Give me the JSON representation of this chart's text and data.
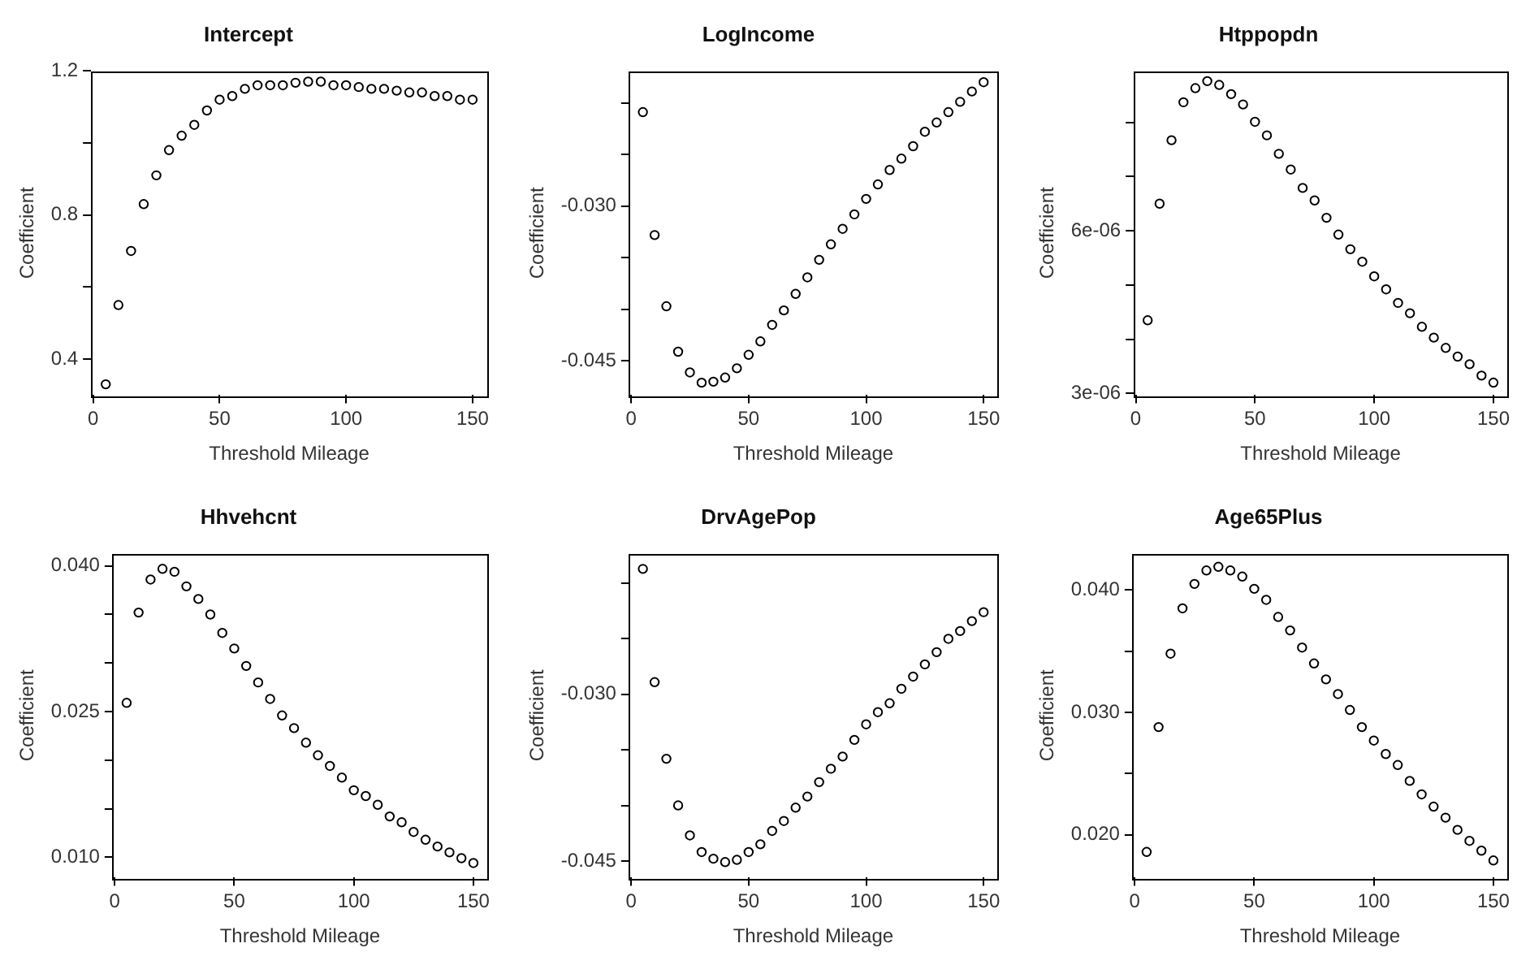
{
  "chart_data": [
    {
      "type": "scatter",
      "title": "Intercept",
      "xlabel": "Threshold Mileage",
      "ylabel": "Coefficient",
      "marker": "circle",
      "color": "#000000",
      "x": [
        5,
        10,
        15,
        20,
        25,
        30,
        35,
        40,
        45,
        50,
        55,
        60,
        65,
        70,
        75,
        80,
        85,
        90,
        95,
        100,
        105,
        110,
        115,
        120,
        125,
        130,
        135,
        140,
        145,
        150
      ],
      "values": [
        0.33,
        0.55,
        0.7,
        0.83,
        0.91,
        0.98,
        1.02,
        1.05,
        1.09,
        1.12,
        1.13,
        1.15,
        1.16,
        1.16,
        1.16,
        1.167,
        1.17,
        1.17,
        1.16,
        1.16,
        1.155,
        1.15,
        1.15,
        1.145,
        1.14,
        1.14,
        1.13,
        1.13,
        1.12,
        1.12
      ],
      "xlim": [
        -0.8,
        155.8
      ],
      "xticks": [
        0,
        50,
        100,
        150
      ],
      "ylim": [
        0.3,
        1.2
      ],
      "yticks": [
        0.4,
        {
          "value": 0.6,
          "label": null
        },
        0.8,
        {
          "value": 1.0,
          "label": null
        },
        1.2
      ]
    },
    {
      "type": "scatter",
      "title": "LogIncome",
      "xlabel": "Threshold Mileage",
      "ylabel": "Coefficient",
      "marker": "circle",
      "color": "#000000",
      "x": [
        5,
        10,
        15,
        20,
        25,
        30,
        35,
        40,
        45,
        50,
        55,
        60,
        65,
        70,
        75,
        80,
        85,
        90,
        95,
        100,
        105,
        110,
        115,
        120,
        125,
        130,
        135,
        140,
        145,
        150
      ],
      "values": [
        -0.0209,
        -0.0328,
        -0.0397,
        -0.0441,
        -0.0461,
        -0.0471,
        -0.047,
        -0.0466,
        -0.0457,
        -0.0444,
        -0.0431,
        -0.0415,
        -0.0401,
        -0.0385,
        -0.0369,
        -0.0352,
        -0.0337,
        -0.0322,
        -0.0308,
        -0.0293,
        -0.0279,
        -0.0265,
        -0.0254,
        -0.0242,
        -0.0228,
        -0.0219,
        -0.0209,
        -0.0199,
        -0.0189,
        -0.018
      ],
      "xlim": [
        -0.8,
        155.8
      ],
      "xticks": [
        0,
        50,
        100,
        150
      ],
      "ylim": [
        -0.0483,
        -0.0169
      ],
      "yticks": [
        {
          "value": -0.045,
          "label": "-0.045"
        },
        {
          "value": -0.04,
          "label": null
        },
        {
          "value": -0.035,
          "label": null
        },
        {
          "value": -0.03,
          "label": "-0.030"
        },
        {
          "value": -0.025,
          "label": null
        },
        {
          "value": -0.02,
          "label": null
        }
      ]
    },
    {
      "type": "scatter",
      "title": "Htppopdn",
      "xlabel": "Threshold Mileage",
      "ylabel": "Coefficient",
      "marker": "circle",
      "color": "#000000",
      "x": [
        5,
        10,
        15,
        20,
        25,
        30,
        35,
        40,
        45,
        50,
        55,
        60,
        65,
        70,
        75,
        80,
        85,
        90,
        95,
        100,
        105,
        110,
        115,
        120,
        125,
        130,
        135,
        140,
        145,
        150
      ],
      "values": [
        4.35e-06,
        6.5e-06,
        7.67e-06,
        8.37e-06,
        8.63e-06,
        8.76e-06,
        8.69e-06,
        8.52e-06,
        8.33e-06,
        8.01e-06,
        7.76e-06,
        7.42e-06,
        7.13e-06,
        6.79e-06,
        6.56e-06,
        6.24e-06,
        5.93e-06,
        5.66e-06,
        5.43e-06,
        5.16e-06,
        4.92e-06,
        4.67e-06,
        4.48e-06,
        4.23e-06,
        4.03e-06,
        3.84e-06,
        3.68e-06,
        3.54e-06,
        3.33e-06,
        3.2e-06
      ],
      "xlim": [
        -0.8,
        155.8
      ],
      "xticks": [
        0,
        50,
        100,
        150
      ],
      "ylim": [
        2.97e-06,
        8.95e-06
      ],
      "yticks": [
        {
          "value": 3e-06,
          "label": "3e-06"
        },
        {
          "value": 4e-06,
          "label": null
        },
        {
          "value": 5e-06,
          "label": null
        },
        {
          "value": 6e-06,
          "label": "6e-06"
        },
        {
          "value": 7e-06,
          "label": null
        },
        {
          "value": 8e-06,
          "label": null
        }
      ]
    },
    {
      "type": "scatter",
      "title": "Hhvehcnt",
      "xlabel": "Threshold Mileage",
      "ylabel": "Coefficient",
      "marker": "circle",
      "color": "#000000",
      "x": [
        5,
        10,
        15,
        20,
        25,
        30,
        35,
        40,
        45,
        50,
        55,
        60,
        65,
        70,
        75,
        80,
        85,
        90,
        95,
        100,
        105,
        110,
        115,
        120,
        125,
        130,
        135,
        140,
        145,
        150
      ],
      "values": [
        0.0259,
        0.0352,
        0.0386,
        0.0397,
        0.0394,
        0.0379,
        0.0366,
        0.035,
        0.0331,
        0.0315,
        0.0297,
        0.028,
        0.0263,
        0.0246,
        0.0233,
        0.0218,
        0.0205,
        0.0194,
        0.0182,
        0.0169,
        0.0163,
        0.0154,
        0.0142,
        0.0136,
        0.0126,
        0.0118,
        0.0111,
        0.0105,
        0.0099,
        0.0094
      ],
      "xlim": [
        -0.8,
        155.8
      ],
      "xticks": [
        0,
        50,
        100,
        150
      ],
      "ylim": [
        0.0079,
        0.0413
      ],
      "yticks": [
        {
          "value": 0.01,
          "label": "0.010"
        },
        {
          "value": 0.015,
          "label": null
        },
        {
          "value": 0.02,
          "label": null
        },
        {
          "value": 0.025,
          "label": "0.025"
        },
        {
          "value": 0.03,
          "label": null
        },
        {
          "value": 0.035,
          "label": null
        },
        {
          "value": 0.04,
          "label": "0.040"
        }
      ]
    },
    {
      "type": "scatter",
      "title": "DrvAgePop",
      "xlabel": "Threshold Mileage",
      "ylabel": "Coefficient",
      "marker": "circle",
      "color": "#000000",
      "x": [
        5,
        10,
        15,
        20,
        25,
        30,
        35,
        40,
        45,
        50,
        55,
        60,
        65,
        70,
        75,
        80,
        85,
        90,
        95,
        100,
        105,
        110,
        115,
        120,
        125,
        130,
        135,
        140,
        145,
        150
      ],
      "values": [
        -0.0187,
        -0.0289,
        -0.0358,
        -0.04,
        -0.0427,
        -0.0442,
        -0.0448,
        -0.0451,
        -0.0449,
        -0.0442,
        -0.0435,
        -0.0423,
        -0.0414,
        -0.0402,
        -0.0392,
        -0.0379,
        -0.0367,
        -0.0356,
        -0.0341,
        -0.0327,
        -0.0316,
        -0.0308,
        -0.0295,
        -0.0284,
        -0.0273,
        -0.0262,
        -0.025,
        -0.0243,
        -0.0234,
        -0.0226
      ],
      "xlim": [
        -0.8,
        155.8
      ],
      "xticks": [
        0,
        50,
        100,
        150
      ],
      "ylim": [
        -0.0465,
        -0.0173
      ],
      "yticks": [
        {
          "value": -0.045,
          "label": "-0.045"
        },
        {
          "value": -0.04,
          "label": null
        },
        {
          "value": -0.035,
          "label": null
        },
        {
          "value": -0.03,
          "label": "-0.030"
        },
        {
          "value": -0.025,
          "label": null
        },
        {
          "value": -0.02,
          "label": null
        }
      ]
    },
    {
      "type": "scatter",
      "title": "Age65Plus",
      "xlabel": "Threshold Mileage",
      "ylabel": "Coefficient",
      "marker": "circle",
      "color": "#000000",
      "x": [
        5,
        10,
        15,
        20,
        25,
        30,
        35,
        40,
        45,
        50,
        55,
        60,
        65,
        70,
        75,
        80,
        85,
        90,
        95,
        100,
        105,
        110,
        115,
        120,
        125,
        130,
        135,
        140,
        145,
        150
      ],
      "values": [
        0.0186,
        0.0288,
        0.0348,
        0.0385,
        0.0405,
        0.0416,
        0.0419,
        0.0416,
        0.0411,
        0.0401,
        0.0392,
        0.0378,
        0.0367,
        0.0353,
        0.034,
        0.0327,
        0.0315,
        0.0302,
        0.0288,
        0.0277,
        0.0266,
        0.0257,
        0.0244,
        0.0233,
        0.0223,
        0.0214,
        0.0204,
        0.0195,
        0.0187,
        0.0179
      ],
      "xlim": [
        -0.8,
        155.8
      ],
      "xticks": [
        0,
        50,
        100,
        150
      ],
      "ylim": [
        0.0165,
        0.043
      ],
      "yticks": [
        {
          "value": 0.02,
          "label": "0.020"
        },
        {
          "value": 0.025,
          "label": null
        },
        {
          "value": 0.03,
          "label": "0.030"
        },
        {
          "value": 0.035,
          "label": null
        },
        {
          "value": 0.04,
          "label": "0.040"
        }
      ]
    }
  ]
}
